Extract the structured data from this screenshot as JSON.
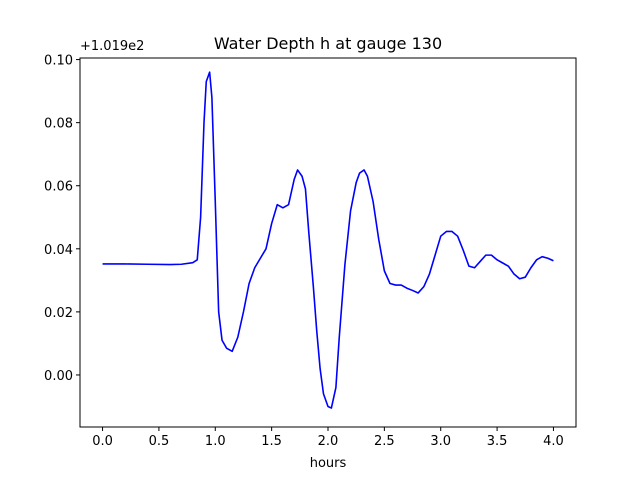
{
  "chart_data": {
    "type": "line",
    "title": "Water Depth h at gauge 130",
    "xlabel": "hours",
    "ylabel": "",
    "y_offset_label": "+1.019e2",
    "xlim": [
      -0.2,
      4.2
    ],
    "ylim": [
      -0.0165,
      0.1005
    ],
    "x_ticks": [
      0.0,
      0.5,
      1.0,
      1.5,
      2.0,
      2.5,
      3.0,
      3.5,
      4.0
    ],
    "x_tick_labels": [
      "0.0",
      "0.5",
      "1.0",
      "1.5",
      "2.0",
      "2.5",
      "3.0",
      "3.5",
      "4.0"
    ],
    "y_ticks": [
      0.0,
      0.02,
      0.04,
      0.06,
      0.08,
      0.1
    ],
    "y_tick_labels": [
      "0.00",
      "0.02",
      "0.04",
      "0.06",
      "0.08",
      "0.10"
    ],
    "grid": false,
    "series": [
      {
        "color": "#0000ff",
        "x": [
          0.0,
          0.2,
          0.4,
          0.6,
          0.7,
          0.8,
          0.84,
          0.87,
          0.9,
          0.92,
          0.95,
          0.97,
          1.0,
          1.03,
          1.06,
          1.1,
          1.15,
          1.2,
          1.25,
          1.3,
          1.35,
          1.4,
          1.45,
          1.5,
          1.55,
          1.6,
          1.65,
          1.7,
          1.73,
          1.77,
          1.8,
          1.83,
          1.87,
          1.9,
          1.93,
          1.96,
          2.0,
          2.03,
          2.07,
          2.1,
          2.15,
          2.2,
          2.25,
          2.28,
          2.32,
          2.35,
          2.4,
          2.45,
          2.5,
          2.55,
          2.6,
          2.65,
          2.7,
          2.75,
          2.8,
          2.85,
          2.9,
          2.95,
          3.0,
          3.05,
          3.1,
          3.15,
          3.2,
          3.25,
          3.3,
          3.35,
          3.4,
          3.45,
          3.5,
          3.55,
          3.6,
          3.65,
          3.7,
          3.75,
          3.8,
          3.85,
          3.9,
          3.95,
          4.0
        ],
        "y": [
          0.0352,
          0.0352,
          0.0351,
          0.035,
          0.0351,
          0.0356,
          0.0365,
          0.05,
          0.08,
          0.093,
          0.096,
          0.088,
          0.055,
          0.02,
          0.011,
          0.0085,
          0.0075,
          0.012,
          0.02,
          0.029,
          0.034,
          0.037,
          0.04,
          0.048,
          0.054,
          0.053,
          0.054,
          0.062,
          0.065,
          0.063,
          0.059,
          0.045,
          0.028,
          0.014,
          0.002,
          -0.006,
          -0.01,
          -0.0105,
          -0.004,
          0.012,
          0.035,
          0.052,
          0.061,
          0.064,
          0.065,
          0.063,
          0.055,
          0.043,
          0.033,
          0.029,
          0.0285,
          0.0285,
          0.0275,
          0.0268,
          0.026,
          0.028,
          0.032,
          0.038,
          0.044,
          0.0455,
          0.0455,
          0.044,
          0.0395,
          0.0345,
          0.034,
          0.036,
          0.038,
          0.038,
          0.0365,
          0.0355,
          0.0345,
          0.032,
          0.0305,
          0.031,
          0.034,
          0.0365,
          0.0375,
          0.037,
          0.0362
        ]
      }
    ]
  }
}
